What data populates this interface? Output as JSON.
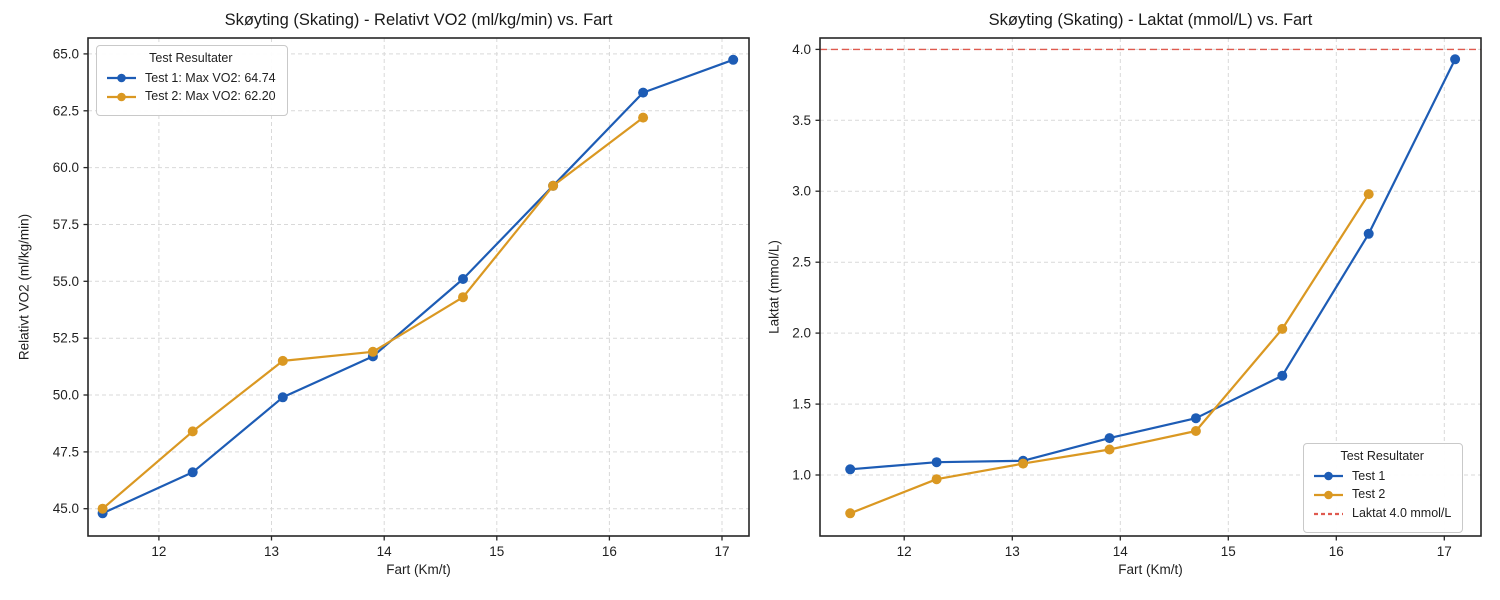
{
  "styles": {
    "background": "#ffffff",
    "grid_color": "#d9d9d9",
    "spine_color": "#262626",
    "text_color": "#1f1f1f",
    "blue": "#1d5cb5",
    "orange": "#da9822",
    "red_dashed": "#df5a4f"
  },
  "chart_data": [
    {
      "type": "line",
      "title": "Skøyting (Skating) - Relativt VO2 (ml/kg/min) vs. Fart",
      "xlabel": "Fart (Km/t)",
      "ylabel": "Relativt VO2 (ml/kg/min)",
      "x": [
        11.5,
        12.3,
        13.1,
        13.9,
        14.7,
        15.5,
        16.3,
        17.1
      ],
      "series": [
        {
          "name": "Test 1: Max VO2: 64.74",
          "color": "#1d5cb5",
          "values": [
            44.8,
            46.6,
            49.9,
            51.7,
            55.1,
            59.2,
            63.3,
            64.74
          ]
        },
        {
          "name": "Test 2: Max VO2: 62.20",
          "color": "#da9822",
          "values": [
            45.0,
            48.4,
            51.5,
            51.9,
            54.3,
            59.2,
            62.2,
            null
          ]
        }
      ],
      "xlim": [
        11.37,
        17.24
      ],
      "ylim": [
        43.8,
        65.7
      ],
      "xticks": [
        12,
        13,
        14,
        15,
        16,
        17
      ],
      "xtick_labels": [
        "12",
        "13",
        "14",
        "15",
        "16",
        "17"
      ],
      "yticks": [
        45.0,
        47.5,
        50.0,
        52.5,
        55.0,
        57.5,
        60.0,
        62.5,
        65.0
      ],
      "ytick_labels": [
        "45.0",
        "47.5",
        "50.0",
        "52.5",
        "55.0",
        "57.5",
        "60.0",
        "62.5",
        "65.0"
      ],
      "grid": true,
      "legend": {
        "title": "Test Resultater",
        "position": "top-left"
      }
    },
    {
      "type": "line",
      "title": "Skøyting (Skating) - Laktat (mmol/L) vs. Fart",
      "xlabel": "Fart (Km/t)",
      "ylabel": "Laktat (mmol/L)",
      "x": [
        11.5,
        12.3,
        13.1,
        13.9,
        14.7,
        15.5,
        16.3,
        17.1
      ],
      "series": [
        {
          "name": "Test 1",
          "color": "#1d5cb5",
          "values": [
            1.04,
            1.09,
            1.1,
            1.26,
            1.4,
            1.7,
            2.7,
            3.93
          ]
        },
        {
          "name": "Test 2",
          "color": "#da9822",
          "values": [
            0.73,
            0.97,
            1.08,
            1.18,
            1.31,
            2.03,
            2.98,
            null
          ]
        }
      ],
      "hline": {
        "label": "Laktat 4.0 mmol/L",
        "value": 4.0,
        "color": "#df5a4f",
        "style": "dashed"
      },
      "xlim": [
        11.22,
        17.34
      ],
      "ylim": [
        0.57,
        4.08
      ],
      "xticks": [
        12,
        13,
        14,
        15,
        16,
        17
      ],
      "xtick_labels": [
        "12",
        "13",
        "14",
        "15",
        "16",
        "17"
      ],
      "yticks": [
        1.0,
        1.5,
        2.0,
        2.5,
        3.0,
        3.5,
        4.0
      ],
      "ytick_labels": [
        "1.0",
        "1.5",
        "2.0",
        "2.5",
        "3.0",
        "3.5",
        "4.0"
      ],
      "grid": true,
      "legend": {
        "title": "Test Resultater",
        "position": "bottom-right"
      }
    }
  ]
}
